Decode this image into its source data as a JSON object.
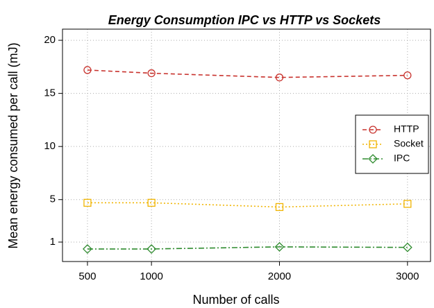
{
  "chart_data": {
    "type": "line",
    "title": "Energy Consumption IPC vs HTTP vs Sockets",
    "xlabel": "Number of calls",
    "ylabel": "Mean energy consumed per call (mJ)",
    "x": [
      500,
      1000,
      2000,
      3000
    ],
    "series": [
      {
        "name": "HTTP",
        "color": "#c8322d",
        "marker": "circle",
        "dash": "6,4",
        "values": [
          17.2,
          16.9,
          16.5,
          16.7
        ]
      },
      {
        "name": "Socket",
        "color": "#f0b400",
        "marker": "square",
        "dash": "2,3",
        "values": [
          4.7,
          4.7,
          4.3,
          4.6
        ]
      },
      {
        "name": "IPC",
        "color": "#2e8b2e",
        "marker": "diamond",
        "dash": "8,3,2,3",
        "values": [
          0.35,
          0.35,
          0.55,
          0.5
        ]
      }
    ],
    "xlim": [
      305,
      3180
    ],
    "xticks": [
      500,
      1000,
      2000,
      3000
    ],
    "ylim": [
      -0.83,
      21.05
    ],
    "yticks": [
      1,
      5,
      10,
      15,
      20
    ],
    "grid": true,
    "legend": "right"
  }
}
